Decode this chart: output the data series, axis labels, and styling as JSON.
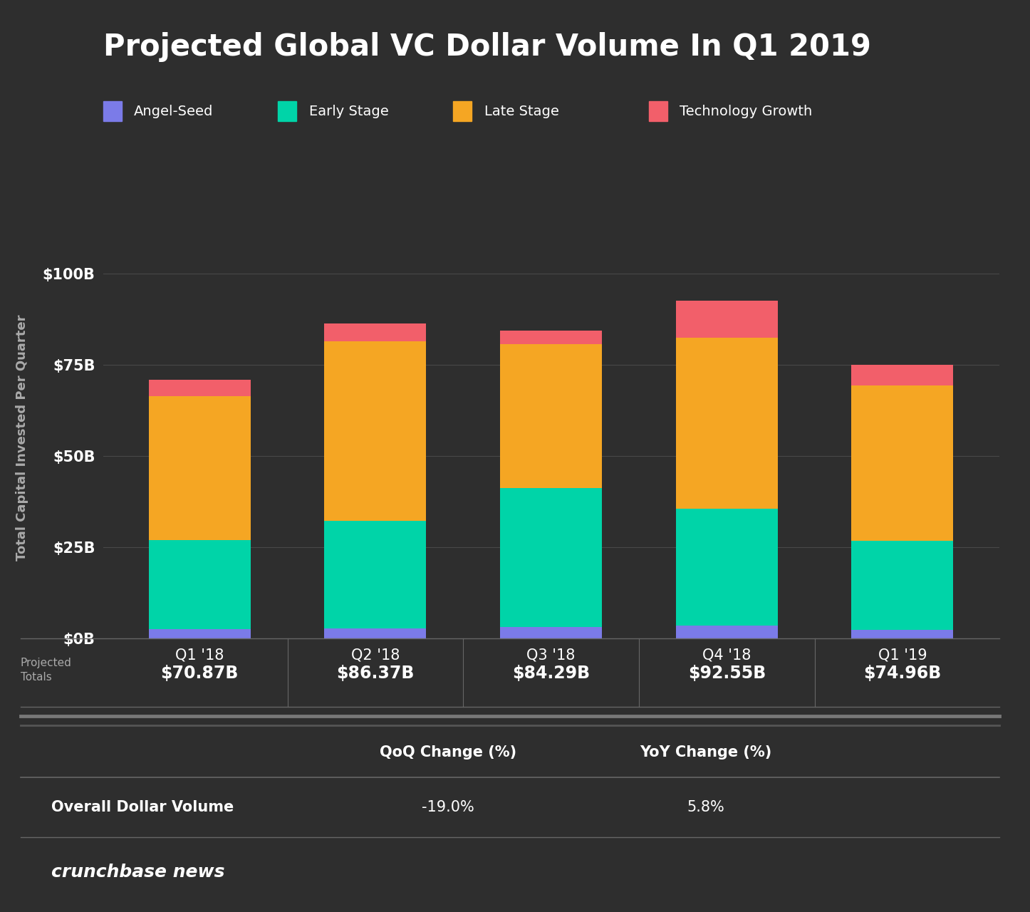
{
  "title": "Projected Global VC Dollar Volume In Q1 2019",
  "background_color": "#2e2e2e",
  "categories": [
    "Q1 '18",
    "Q2 '18",
    "Q3 '18",
    "Q4 '18",
    "Q1 '19"
  ],
  "angel_seed": [
    2.5,
    2.8,
    3.2,
    3.5,
    2.3
  ],
  "early_stage": [
    24.5,
    29.5,
    38.0,
    32.0,
    24.5
  ],
  "late_stage": [
    39.5,
    49.2,
    39.5,
    47.0,
    42.5
  ],
  "tech_growth": [
    4.37,
    4.87,
    3.59,
    10.05,
    5.66
  ],
  "totals": [
    "$70.87B",
    "$86.37B",
    "$84.29B",
    "$92.55B",
    "$74.96B"
  ],
  "angel_seed_color": "#7b7be8",
  "early_stage_color": "#00d4a8",
  "late_stage_color": "#f5a623",
  "tech_growth_color": "#f25f6a",
  "ylabel": "Total Capital Invested Per Quarter",
  "yticks": [
    0,
    25,
    50,
    75,
    100
  ],
  "ytick_labels": [
    "$0B",
    "$25B",
    "$50B",
    "$75B",
    "$100B"
  ],
  "ylim": [
    0,
    110
  ],
  "legend_labels": [
    "Angel-Seed",
    "Early Stage",
    "Late Stage",
    "Technology Growth"
  ],
  "qoq_change": "-19.0%",
  "yoy_change": "5.8%",
  "table_row_label": "Overall Dollar Volume",
  "table_col1": "QoQ Change (%)",
  "table_col2": "YoY Change (%)",
  "projected_totals_label": "Projected\nTotals",
  "source_label": "crunchbase news",
  "text_color": "#ffffff",
  "muted_color": "#aaaaaa",
  "grid_color": "#484848",
  "separator_color": "#666666",
  "bar_width": 0.58
}
